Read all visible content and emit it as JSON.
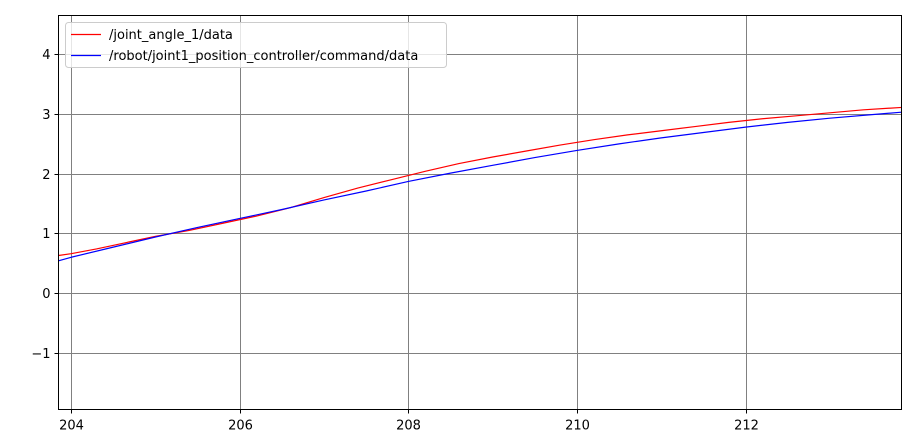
{
  "chart_data": {
    "type": "line",
    "title": "",
    "xlabel": "",
    "ylabel": "",
    "xlim": [
      203.85,
      213.85
    ],
    "ylim": [
      -1.95,
      4.65
    ],
    "x_ticks": [
      204,
      206,
      208,
      210,
      212
    ],
    "x_tick_labels": [
      "204",
      "206",
      "208",
      "210",
      "212"
    ],
    "y_ticks": [
      -1,
      0,
      1,
      2,
      3,
      4
    ],
    "y_tick_labels": [
      "−1",
      "0",
      "1",
      "2",
      "3",
      "4"
    ],
    "grid": true,
    "grid_color": "#808080",
    "legend_position": "top-left",
    "series": [
      {
        "name": "/joint_angle_1/data",
        "color": "#ff0000",
        "x": [
          203.85,
          204.0,
          204.3,
          204.6,
          205.0,
          205.4,
          205.8,
          206.2,
          206.6,
          207.0,
          207.4,
          207.8,
          208.2,
          208.6,
          209.0,
          209.4,
          209.8,
          210.2,
          210.6,
          211.0,
          211.4,
          211.8,
          212.2,
          212.6,
          213.0,
          213.4,
          213.85
        ],
        "values": [
          0.63,
          0.66,
          0.74,
          0.83,
          0.95,
          1.05,
          1.17,
          1.29,
          1.43,
          1.6,
          1.76,
          1.9,
          2.04,
          2.17,
          2.28,
          2.38,
          2.48,
          2.57,
          2.65,
          2.72,
          2.79,
          2.86,
          2.92,
          2.97,
          3.02,
          3.07,
          3.11
        ]
      },
      {
        "name": "/robot/joint1_position_controller/command/data",
        "color": "#0000ff",
        "x": [
          203.85,
          204.0,
          204.5,
          205.0,
          205.5,
          206.0,
          206.5,
          207.0,
          207.5,
          208.0,
          208.5,
          209.0,
          209.5,
          210.0,
          210.5,
          211.0,
          211.5,
          212.0,
          212.5,
          213.0,
          213.5,
          213.85
        ],
        "values": [
          0.54,
          0.6,
          0.77,
          0.94,
          1.1,
          1.25,
          1.4,
          1.56,
          1.71,
          1.87,
          2.01,
          2.14,
          2.27,
          2.39,
          2.5,
          2.6,
          2.69,
          2.78,
          2.86,
          2.93,
          2.99,
          3.03
        ]
      }
    ]
  }
}
